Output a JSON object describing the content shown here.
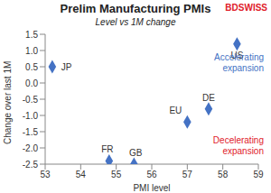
{
  "chart_data": {
    "type": "scatter",
    "title": "Prelim Manufacturing PMIs",
    "subtitle": "Level vs 1M change",
    "logo": "BDSWISS",
    "logo_color": "#e0202a",
    "x_label": "PMI level",
    "y_label": "Change over last 1M",
    "xlim": [
      53,
      59
    ],
    "xticks": [
      53,
      54,
      55,
      56,
      57,
      58,
      59
    ],
    "ylim": [
      -2.5,
      1.5
    ],
    "yticks": [
      1.5,
      {
        "value": 1,
        "label": "1.0"
      },
      0.5,
      {
        "value": 0,
        "label": "0.0"
      },
      -0.5,
      {
        "value": -1,
        "label": "-1.0"
      },
      -1.5,
      {
        "value": -2,
        "label": "-2.0"
      },
      -2.5
    ],
    "grid": false,
    "series": [
      {
        "color": "#4472c4",
        "marker": "diamond",
        "x": [
          53.2,
          58.4,
          57.6,
          57.0,
          54.8,
          55.5
        ],
        "values": [
          0.5,
          1.2,
          -0.8,
          -1.2,
          -2.4,
          -2.5
        ],
        "point_labels": [
          "JP",
          "US",
          "DE",
          "EU",
          "FR",
          "GB"
        ]
      }
    ],
    "annotations": [
      {
        "text": "Accelerating expansion",
        "color": "#4472c4"
      },
      {
        "text": "Decelerating expansion",
        "color": "#e0202a"
      }
    ]
  }
}
